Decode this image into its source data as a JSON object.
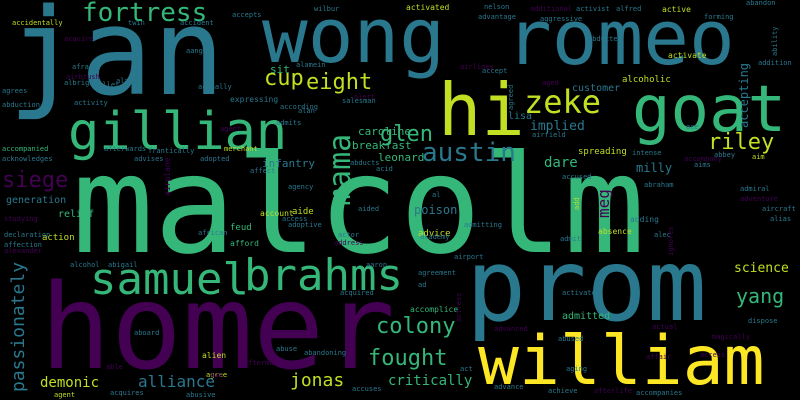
{
  "background": "#000000",
  "words": [
    {
      "text": "malcolm",
      "color": "#35b779"
    },
    {
      "text": "jan",
      "color": "#2a788e"
    },
    {
      "text": "prom",
      "color": "#2a788e"
    },
    {
      "text": "wong",
      "color": "#2a788e"
    },
    {
      "text": "romeo",
      "color": "#2a788e"
    },
    {
      "text": "homer",
      "color": "#440154"
    },
    {
      "text": "william",
      "color": "#fde725"
    },
    {
      "text": "goat",
      "color": "#35b779"
    },
    {
      "text": "hi",
      "color": "#c2df23"
    },
    {
      "text": "gillian",
      "color": "#35b779"
    },
    {
      "text": "samuel",
      "color": "#35b779"
    },
    {
      "text": "brahms",
      "color": "#35b779"
    },
    {
      "text": "zeke",
      "color": "#c2df23"
    },
    {
      "text": "mama",
      "color": "#35b779"
    },
    {
      "text": "fortress",
      "color": "#35b779"
    },
    {
      "text": "austin",
      "color": "#2a788e"
    },
    {
      "text": "glen",
      "color": "#35b779"
    },
    {
      "text": "eight",
      "color": "#c2df23"
    },
    {
      "text": "cup",
      "color": "#c2df23"
    },
    {
      "text": "riley",
      "color": "#c2df23"
    },
    {
      "text": "siege",
      "color": "#440154"
    },
    {
      "text": "colony",
      "color": "#35b779"
    },
    {
      "text": "fought",
      "color": "#35b779"
    },
    {
      "text": "passionately",
      "color": "#2a788e"
    },
    {
      "text": "yang",
      "color": "#35b779"
    },
    {
      "text": "jonas",
      "color": "#c2df23"
    },
    {
      "text": "alliance",
      "color": "#2a788e"
    },
    {
      "text": "demonic",
      "color": "#c2df23"
    },
    {
      "text": "critically",
      "color": "#35b779"
    },
    {
      "text": "science",
      "color": "#c2df23"
    },
    {
      "text": "dare",
      "color": "#35b779"
    },
    {
      "text": "meg",
      "color": "#440154"
    },
    {
      "text": "implied",
      "color": "#2a788e"
    },
    {
      "text": "milly",
      "color": "#2a788e"
    },
    {
      "text": "poison",
      "color": "#2a788e"
    },
    {
      "text": "caroline",
      "color": "#35b779"
    },
    {
      "text": "breakfast",
      "color": "#35b779"
    },
    {
      "text": "leonard",
      "color": "#35b779"
    },
    {
      "text": "infantry",
      "color": "#2a788e"
    },
    {
      "text": "sit",
      "color": "#35b779"
    },
    {
      "text": "customer",
      "color": "#2a788e"
    },
    {
      "text": "lisa",
      "color": "#2a788e"
    },
    {
      "text": "accepting",
      "color": "#2a788e"
    },
    {
      "text": "generation",
      "color": "#2a788e"
    },
    {
      "text": "relief",
      "color": "#35b779"
    },
    {
      "text": "action",
      "color": "#c2df23"
    },
    {
      "text": "admitted",
      "color": "#35b779"
    },
    {
      "text": "spreading",
      "color": "#c2df23"
    },
    {
      "text": "aide",
      "color": "#c2df23"
    },
    {
      "text": "advice",
      "color": "#c2df23"
    },
    {
      "text": "alcoholic",
      "color": "#c2df23"
    },
    {
      "text": "active",
      "color": "#c2df23"
    },
    {
      "text": "activated",
      "color": "#c2df23"
    },
    {
      "text": "alien",
      "color": "#c2df23"
    },
    {
      "text": "activate",
      "color": "#c2df23"
    },
    {
      "text": "agent",
      "color": "#c2df23"
    },
    {
      "text": "agree",
      "color": "#c2df23"
    },
    {
      "text": "account",
      "color": "#c2df23"
    },
    {
      "text": "adding",
      "color": "#2a788e"
    },
    {
      "text": "feud",
      "color": "#35b779"
    },
    {
      "text": "afford",
      "color": "#35b779"
    },
    {
      "text": "accompanied",
      "color": "#35b779"
    },
    {
      "text": "aim",
      "color": "#c2df23"
    },
    {
      "text": "adopted",
      "color": "#2a788e"
    },
    {
      "text": "absence",
      "color": "#c2df23"
    },
    {
      "text": "accidentally",
      "color": "#c2df23"
    },
    {
      "text": "abandon",
      "color": "#2a788e"
    },
    {
      "text": "addition",
      "color": "#2a788e"
    },
    {
      "text": "ability",
      "color": "#2a788e"
    },
    {
      "text": "forming",
      "color": "#2a788e"
    },
    {
      "text": "alfred",
      "color": "#2a788e"
    },
    {
      "text": "activist",
      "color": "#2a788e"
    },
    {
      "text": "aggressive",
      "color": "#2a788e"
    },
    {
      "text": "advantage",
      "color": "#2a788e"
    },
    {
      "text": "nelson",
      "color": "#2a788e"
    },
    {
      "text": "additional",
      "color": "#440154"
    },
    {
      "text": "accident",
      "color": "#2a788e"
    },
    {
      "text": "accepts",
      "color": "#2a788e"
    },
    {
      "text": "wilbur",
      "color": "#2a788e"
    },
    {
      "text": "airplane",
      "color": "#440154"
    },
    {
      "text": "abducted",
      "color": "#2a788e"
    },
    {
      "text": "accept",
      "color": "#2a788e"
    },
    {
      "text": "agreed",
      "color": "#2a788e"
    },
    {
      "text": "airfield",
      "color": "#2a788e"
    },
    {
      "text": "alert",
      "color": "#440154"
    },
    {
      "text": "agent",
      "color": "#440154"
    },
    {
      "text": "actually",
      "color": "#2a788e"
    },
    {
      "text": "alarm",
      "color": "#2a788e"
    },
    {
      "text": "airbrush",
      "color": "#440154"
    },
    {
      "text": "expressing",
      "color": "#2a788e"
    },
    {
      "text": "according",
      "color": "#2a788e"
    },
    {
      "text": "admits",
      "color": "#2a788e"
    },
    {
      "text": "advises",
      "color": "#2a788e"
    },
    {
      "text": "frantically",
      "color": "#2a788e"
    },
    {
      "text": "merchant",
      "color": "#c2df23"
    },
    {
      "text": "afterwards",
      "color": "#2a788e"
    },
    {
      "text": "acknowledges",
      "color": "#2a788e"
    },
    {
      "text": "studying",
      "color": "#440154"
    },
    {
      "text": "declaration",
      "color": "#2a788e"
    },
    {
      "text": "affection",
      "color": "#2a788e"
    },
    {
      "text": "alexander",
      "color": "#440154"
    },
    {
      "text": "african",
      "color": "#2a788e"
    },
    {
      "text": "affect",
      "color": "#2a788e"
    },
    {
      "text": "agency",
      "color": "#2a788e"
    },
    {
      "text": "adoptive",
      "color": "#2a788e"
    },
    {
      "text": "access",
      "color": "#2a788e"
    },
    {
      "text": "actor",
      "color": "#2a788e"
    },
    {
      "text": "address",
      "color": "#440154"
    },
    {
      "text": "academy",
      "color": "#2a788e"
    },
    {
      "text": "aaron",
      "color": "#2a788e"
    },
    {
      "text": "agreement",
      "color": "#2a788e"
    },
    {
      "text": "airport",
      "color": "#2a788e"
    },
    {
      "text": "activates",
      "color": "#2a788e"
    },
    {
      "text": "accompanies",
      "color": "#2a788e"
    },
    {
      "text": "achieve",
      "color": "#2a788e"
    },
    {
      "text": "afterlife",
      "color": "#440154"
    },
    {
      "text": "advance",
      "color": "#2a788e"
    },
    {
      "text": "advanced",
      "color": "#440154"
    },
    {
      "text": "actual",
      "color": "#440154"
    },
    {
      "text": "magically",
      "color": "#440154"
    },
    {
      "text": "dispose",
      "color": "#2a788e"
    },
    {
      "text": "alcohol",
      "color": "#2a788e"
    },
    {
      "text": "abigail",
      "color": "#2a788e"
    },
    {
      "text": "aboard",
      "color": "#2a788e"
    },
    {
      "text": "abusive",
      "color": "#2a788e"
    },
    {
      "text": "abuse",
      "color": "#2a788e"
    },
    {
      "text": "abandoning",
      "color": "#2a788e"
    },
    {
      "text": "aftermath",
      "color": "#440154"
    },
    {
      "text": "accuses",
      "color": "#2a788e"
    },
    {
      "text": "acquires",
      "color": "#2a788e"
    },
    {
      "text": "accomplice",
      "color": "#35b779"
    },
    {
      "text": "abused",
      "color": "#2a788e"
    },
    {
      "text": "aging",
      "color": "#2a788e"
    },
    {
      "text": "affair",
      "color": "#440154"
    },
    {
      "text": "access",
      "color": "#440154"
    },
    {
      "text": "abraham",
      "color": "#2a788e"
    },
    {
      "text": "accused",
      "color": "#2a788e"
    },
    {
      "text": "accompany",
      "color": "#440154"
    },
    {
      "text": "adventure",
      "color": "#440154"
    },
    {
      "text": "admiral",
      "color": "#2a788e"
    },
    {
      "text": "aircraft",
      "color": "#2a788e"
    },
    {
      "text": "alias",
      "color": "#2a788e"
    },
    {
      "text": "alec",
      "color": "#2a788e"
    },
    {
      "text": "admit",
      "color": "#2a788e"
    },
    {
      "text": "intense",
      "color": "#2a788e"
    },
    {
      "text": "abbey",
      "color": "#2a788e"
    },
    {
      "text": "ace",
      "color": "#2a788e"
    },
    {
      "text": "abducts",
      "color": "#2a788e"
    },
    {
      "text": "acid",
      "color": "#2a788e"
    },
    {
      "text": "aided",
      "color": "#2a788e"
    },
    {
      "text": "admitting",
      "color": "#2a788e"
    },
    {
      "text": "salesman",
      "color": "#2a788e"
    },
    {
      "text": "alan",
      "color": "#2a788e"
    },
    {
      "text": "alamein",
      "color": "#2a788e"
    },
    {
      "text": "airlines",
      "color": "#440154"
    },
    {
      "text": "aged",
      "color": "#440154"
    },
    {
      "text": "abduction",
      "color": "#2a788e"
    },
    {
      "text": "afraid",
      "color": "#2a788e"
    },
    {
      "text": "acquire",
      "color": "#440154"
    },
    {
      "text": "activity",
      "color": "#2a788e"
    },
    {
      "text": "albright",
      "color": "#2a788e"
    },
    {
      "text": "agrees",
      "color": "#2a788e"
    },
    {
      "text": "wallet",
      "color": "#2a788e"
    },
    {
      "text": "twin",
      "color": "#2a788e"
    },
    {
      "text": "aang",
      "color": "#2a788e"
    },
    {
      "text": "ad",
      "color": "#2a788e"
    },
    {
      "text": "al",
      "color": "#2a788e"
    },
    {
      "text": "act",
      "color": "#2a788e"
    },
    {
      "text": "able",
      "color": "#440154"
    },
    {
      "text": "ago",
      "color": "#440154"
    },
    {
      "text": "add",
      "color": "#c2df23"
    },
    {
      "text": "acquired",
      "color": "#2a788e"
    },
    {
      "text": "ignores",
      "color": "#440154"
    },
    {
      "text": "aims",
      "color": "#2a788e"
    },
    {
      "text": "actress",
      "color": "#440154"
    }
  ]
}
